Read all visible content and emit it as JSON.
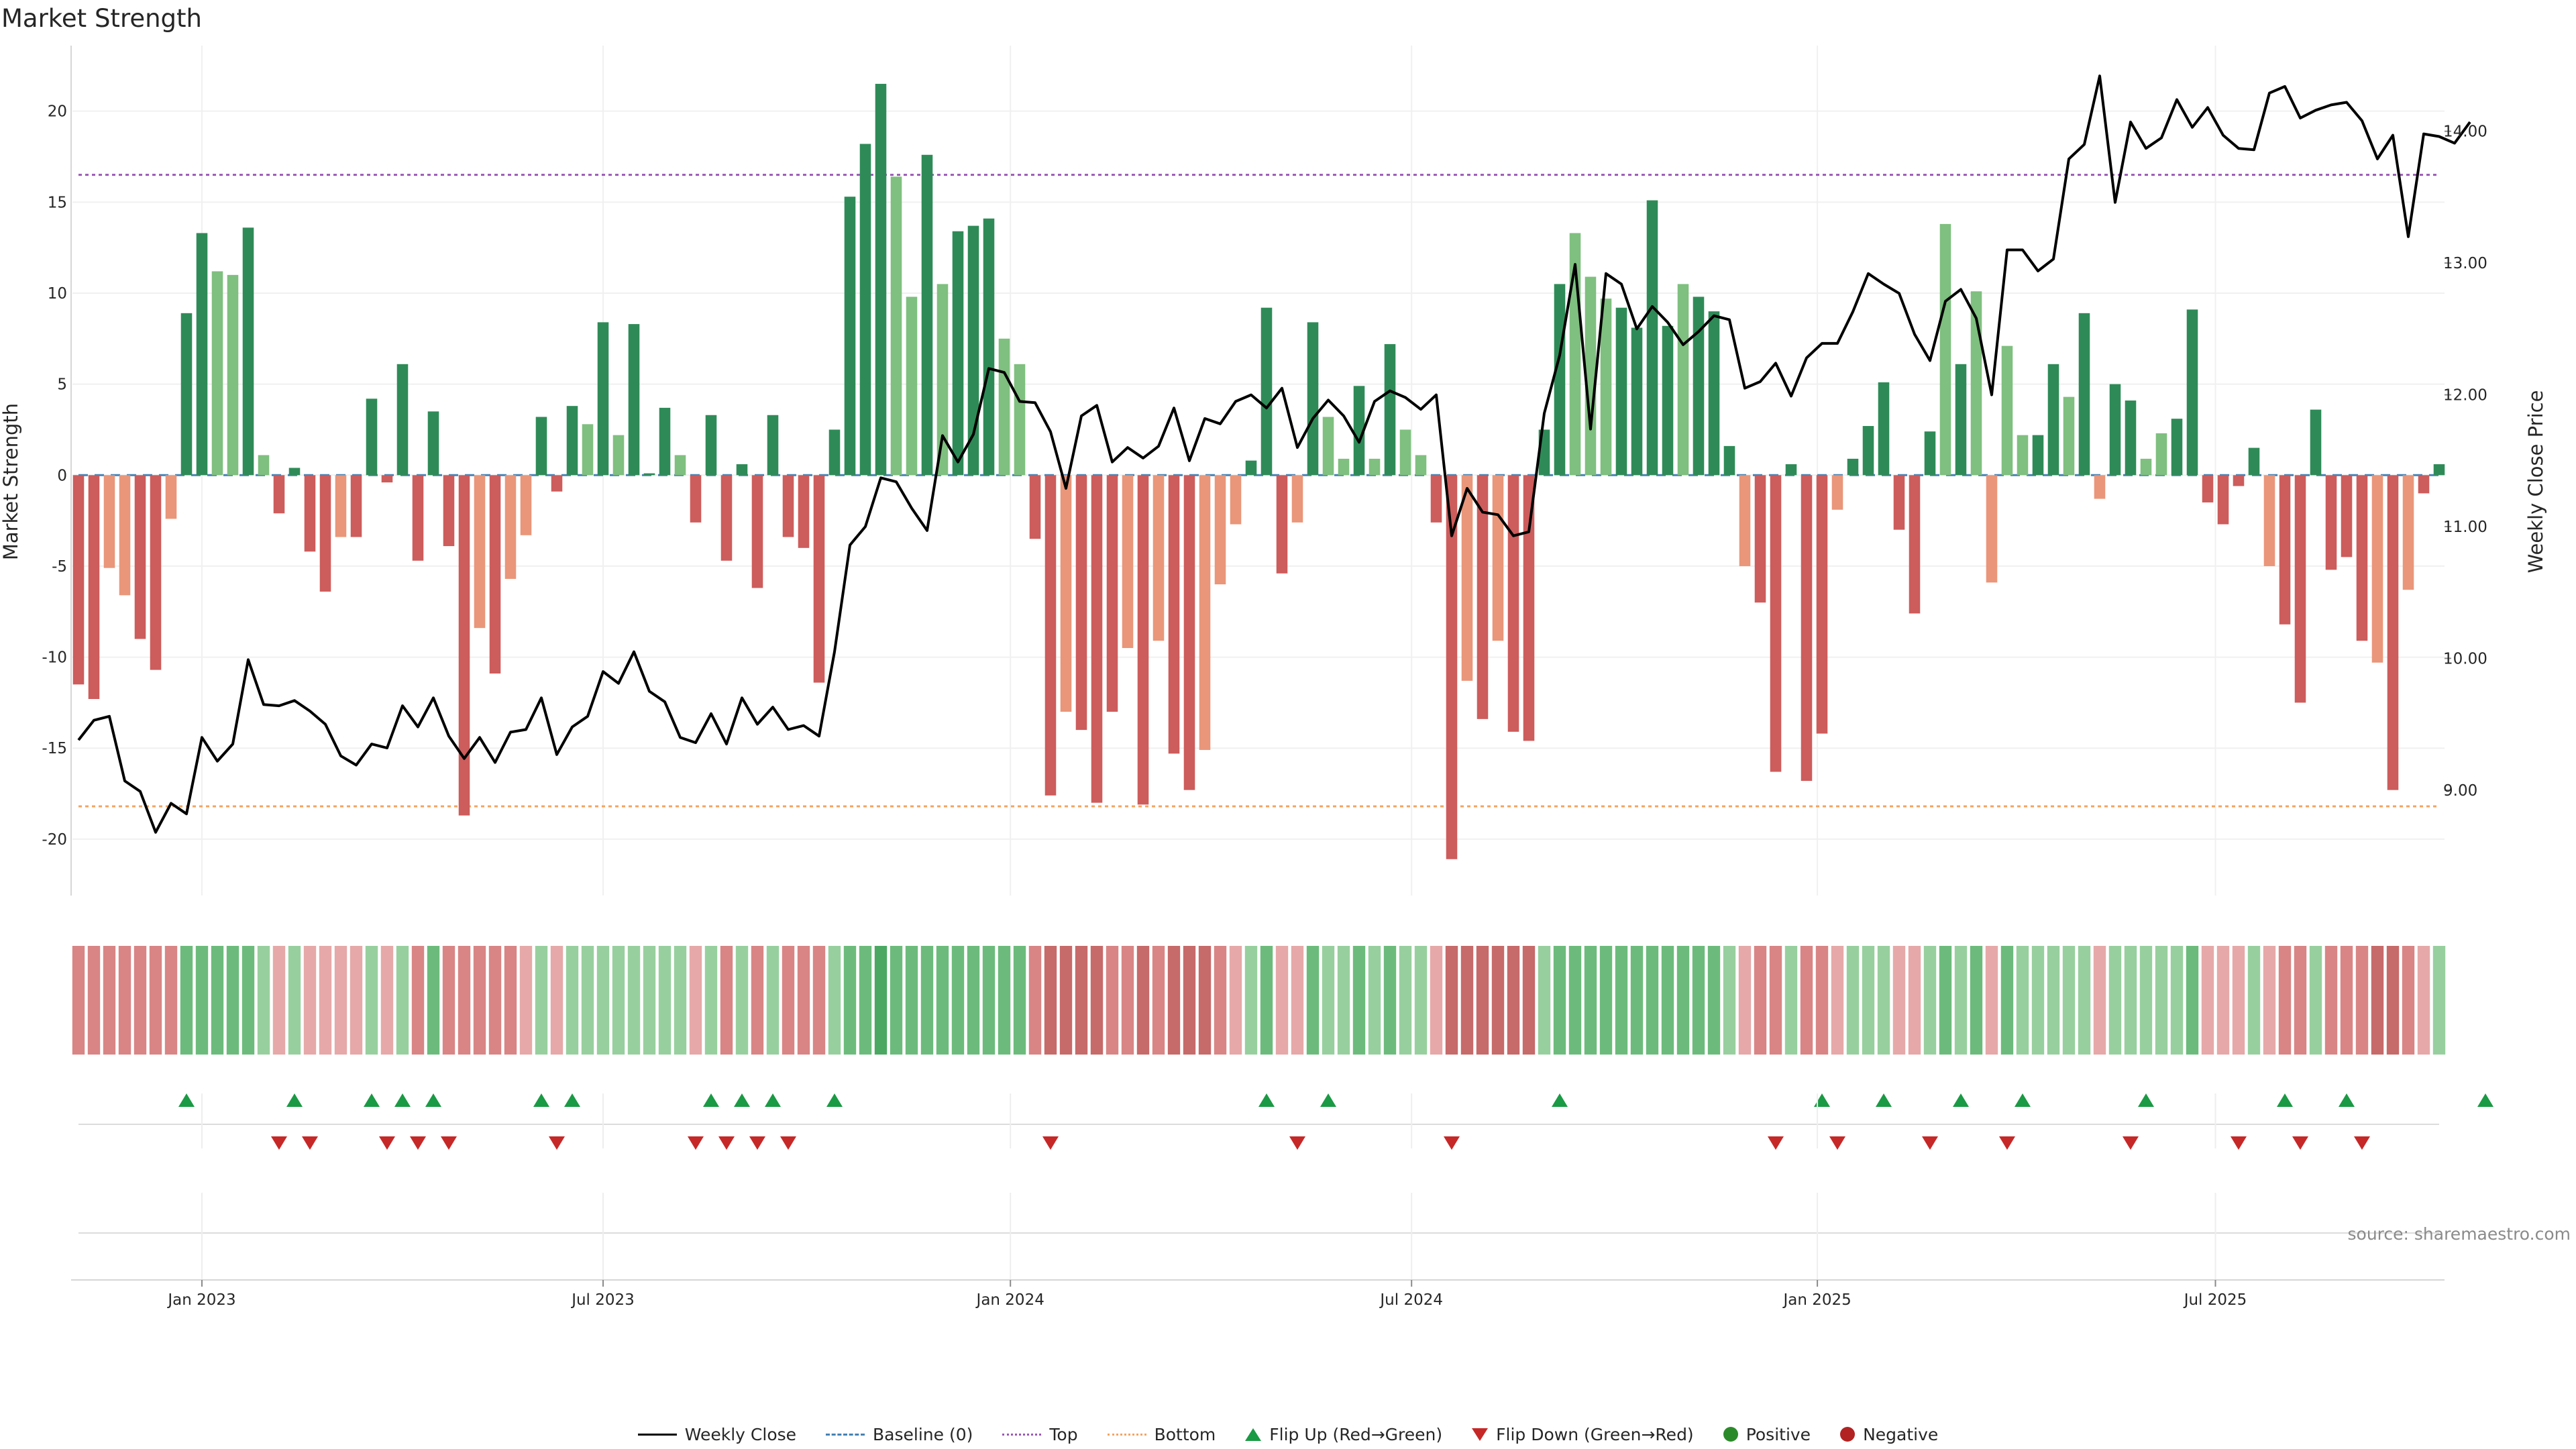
{
  "chart_data": {
    "type": "bar",
    "title": "Market Strength",
    "ylabel_left": "Market Strength",
    "ylabel_right": "Weekly Close Price",
    "source": "source: sharemaestro.com",
    "x_tick_labels": [
      "Jan 2023",
      "Jul 2023",
      "Jan 2024",
      "Jul 2024",
      "Jan 2025",
      "Jul 2025"
    ],
    "x_tick_indices": [
      8,
      34,
      60.4,
      86.4,
      112.7,
      138.5
    ],
    "y_left_ticks": [
      -20,
      -15,
      -10,
      -5,
      0,
      5,
      10,
      15,
      20
    ],
    "y_left_range": [
      -23.1,
      23.6
    ],
    "y_right_ticks": [
      "9.00",
      "10.00",
      "11.00",
      "12.00",
      "13.00",
      "14.00"
    ],
    "y_right_range": [
      8.2,
      14.65
    ],
    "top_line": 16.5,
    "bottom_line": -18.2,
    "strength": [
      -11.5,
      -12.3,
      -5.1,
      -6.6,
      -9,
      -10.7,
      -2.4,
      8.9,
      13.3,
      11.2,
      11,
      13.6,
      1.1,
      -2.1,
      0.4,
      -4.2,
      -6.4,
      -3.4,
      -3.4,
      4.2,
      -0.4,
      6.1,
      -4.7,
      3.5,
      -3.9,
      -18.7,
      -8.4,
      -10.9,
      -5.7,
      -3.3,
      3.2,
      -0.9,
      3.8,
      2.8,
      8.4,
      2.2,
      8.3,
      0.1,
      3.7,
      1.1,
      -2.6,
      3.3,
      -4.7,
      0.6,
      -6.2,
      3.3,
      -3.4,
      -4,
      -11.4,
      2.5,
      15.3,
      18.2,
      21.5,
      16.4,
      9.8,
      17.6,
      10.5,
      13.4,
      13.7,
      14.1,
      7.5,
      6.1,
      -3.5,
      -17.6,
      -13,
      -14,
      -18,
      -13,
      -9.5,
      -18.1,
      -9.1,
      -15.3,
      -17.3,
      -15.1,
      -6,
      -2.7,
      0.8,
      9.2,
      -5.4,
      -2.6,
      8.4,
      3.2,
      0.9,
      4.9,
      0.9,
      7.2,
      2.5,
      1.1,
      -2.6,
      -21.1,
      -11.3,
      -13.4,
      -9.1,
      -14.1,
      -14.6,
      2.5,
      10.5,
      13.3,
      10.9,
      9.7,
      9.2,
      8.1,
      15.1,
      8.2,
      10.5,
      9.8,
      9,
      1.6,
      -5,
      -7,
      -16.3,
      0.6,
      -16.8,
      -14.2,
      -1.9,
      0.9,
      2.7,
      5.1,
      -3,
      -7.6,
      2.4,
      13.8,
      6.1,
      10.1,
      -5.9,
      7.1,
      2.2,
      2.2,
      6.1,
      4.3,
      8.9,
      -1.3,
      5,
      4.1,
      0.9,
      2.3,
      3.1,
      9.1,
      -1.5,
      -2.7,
      -0.6,
      1.5,
      -5,
      -8.2,
      -12.5,
      3.6,
      -5.2,
      -4.5,
      -9.1,
      -10.3,
      -17.3,
      -6.3,
      -1,
      0.6
    ],
    "bar_shade": [
      1,
      1,
      0,
      0,
      1,
      1,
      0,
      1,
      1,
      0,
      0,
      1,
      0,
      1,
      1,
      1,
      1,
      0,
      1,
      1,
      1,
      1,
      1,
      1,
      1,
      1,
      0,
      1,
      0,
      0,
      1,
      1,
      1,
      0,
      1,
      0,
      1,
      1,
      1,
      0,
      1,
      1,
      1,
      1,
      1,
      1,
      1,
      1,
      1,
      1,
      1,
      1,
      1,
      0,
      0,
      1,
      0,
      1,
      1,
      1,
      0,
      0,
      1,
      1,
      0,
      1,
      1,
      1,
      0,
      1,
      0,
      1,
      1,
      0,
      0,
      0,
      1,
      1,
      1,
      0,
      1,
      0,
      0,
      1,
      0,
      1,
      0,
      0,
      1,
      1,
      0,
      1,
      0,
      1,
      1,
      1,
      1,
      0,
      0,
      0,
      1,
      1,
      1,
      1,
      0,
      1,
      1,
      1,
      0,
      1,
      1,
      1,
      1,
      1,
      0,
      1,
      1,
      1,
      1,
      1,
      1,
      0,
      1,
      0,
      0,
      0,
      0,
      1,
      1,
      0,
      1,
      0,
      1,
      1,
      0,
      0,
      1,
      1,
      1,
      1,
      1,
      1,
      0,
      1,
      1,
      1,
      1,
      1,
      1,
      0,
      1,
      0,
      1,
      1,
      0,
      0,
      0
    ],
    "weekly_close": [
      9.38,
      9.53,
      9.56,
      9.07,
      8.99,
      8.68,
      8.9,
      8.82,
      9.4,
      9.22,
      9.35,
      9.99,
      9.65,
      9.64,
      9.68,
      9.6,
      9.5,
      9.26,
      9.19,
      9.35,
      9.32,
      9.64,
      9.48,
      9.7,
      9.41,
      9.24,
      9.4,
      9.21,
      9.44,
      9.46,
      9.7,
      9.27,
      9.48,
      9.56,
      9.9,
      9.81,
      10.05,
      9.75,
      9.67,
      9.4,
      9.36,
      9.58,
      9.35,
      9.7,
      9.5,
      9.63,
      9.46,
      9.49,
      9.41,
      10.05,
      10.86,
      11.0,
      11.37,
      11.34,
      11.14,
      10.97,
      11.69,
      11.49,
      11.7,
      12.2,
      12.17,
      11.95,
      11.94,
      11.72,
      11.29,
      11.84,
      11.92,
      11.49,
      11.6,
      11.52,
      11.61,
      11.9,
      11.5,
      11.82,
      11.78,
      11.95,
      12.0,
      11.9,
      12.05,
      11.6,
      11.82,
      11.96,
      11.84,
      11.64,
      11.95,
      12.03,
      11.98,
      11.89,
      12.0,
      10.93,
      11.29,
      11.11,
      11.09,
      10.93,
      10.96,
      11.86,
      12.3,
      12.99,
      11.74,
      12.92,
      12.84,
      12.5,
      12.67,
      12.55,
      12.38,
      12.48,
      12.6,
      12.57,
      12.05,
      12.1,
      12.24,
      11.99,
      12.28,
      12.39,
      12.39,
      12.63,
      12.92,
      12.84,
      12.77,
      12.46,
      12.26,
      12.71,
      12.8,
      12.58,
      12.0,
      13.1,
      13.1,
      12.94,
      13.03,
      13.79,
      13.9,
      14.42,
      13.46,
      14.07,
      13.87,
      13.95,
      14.24,
      14.03,
      14.18,
      13.97,
      13.87,
      13.86,
      14.29,
      14.34,
      14.1,
      14.16,
      14.2,
      14.22,
      14.08,
      13.79,
      13.97,
      13.2,
      13.98,
      13.96,
      13.91,
      14.07
    ],
    "heat_levels": [
      -2,
      -2,
      -2,
      -2,
      -2,
      -2,
      -2,
      2,
      2,
      2,
      2,
      2,
      1,
      -1,
      1,
      -1,
      -1,
      -1,
      -1,
      1,
      -1,
      1,
      -2,
      2,
      -2,
      -2,
      -2,
      -2,
      -2,
      -1,
      1,
      -1,
      1,
      1,
      1,
      1,
      1,
      1,
      1,
      1,
      -1,
      1,
      -2,
      1,
      -2,
      1,
      -2,
      -2,
      -2,
      1,
      2,
      2,
      3,
      2,
      2,
      2,
      2,
      2,
      2,
      2,
      2,
      2,
      -2,
      -3,
      -3,
      -3,
      -3,
      -2,
      -2,
      -3,
      -2,
      -3,
      -3,
      -3,
      -2,
      -1,
      1,
      2,
      -1,
      -1,
      2,
      1,
      1,
      2,
      1,
      2,
      1,
      1,
      -1,
      -3,
      -3,
      -3,
      -3,
      -3,
      -3,
      1,
      2,
      2,
      2,
      2,
      2,
      2,
      2,
      2,
      2,
      2,
      2,
      1,
      -1,
      -2,
      -2,
      1,
      -2,
      -2,
      -1,
      1,
      1,
      1,
      -1,
      -1,
      1,
      2,
      1,
      2,
      -1,
      2,
      1,
      1,
      1,
      1,
      1,
      -1,
      1,
      1,
      1,
      1,
      1,
      2,
      -1,
      -1,
      -1,
      1,
      -1,
      -2,
      -2,
      1,
      -2,
      -2,
      -2,
      -3,
      -3,
      -2,
      -1,
      1
    ],
    "flip_up_indices": [
      7,
      14,
      19,
      21,
      23,
      30,
      32,
      41,
      43,
      45,
      49,
      77,
      81,
      96,
      113,
      117,
      122,
      126,
      134,
      143,
      147,
      156
    ],
    "flip_down_indices": [
      13,
      15,
      20,
      22,
      24,
      31,
      40,
      42,
      44,
      46,
      63,
      79,
      89,
      110,
      114,
      120,
      125,
      133,
      140,
      144,
      148
    ],
    "colors": {
      "bar_green_dark": "#2e8b57",
      "bar_green_light": "#7fbf7f",
      "bar_red_dark": "#cd5c5c",
      "bar_red_light": "#e9967a",
      "weekly_close": "#000000",
      "baseline": "#4682b4",
      "top": "#9b59b6",
      "bottom": "#f4a460",
      "flip_up": "#1a9a44",
      "flip_down": "#c62828",
      "positive": "#2a8a2a",
      "negative": "#b22222"
    },
    "legend": [
      {
        "label": "Weekly Close",
        "kind": "line-solid",
        "color": "#000000"
      },
      {
        "label": "Baseline (0)",
        "kind": "line-dash",
        "color": "#4682b4"
      },
      {
        "label": "Top",
        "kind": "line-dot",
        "color": "#9b59b6"
      },
      {
        "label": "Bottom",
        "kind": "line-dot",
        "color": "#f4a460"
      },
      {
        "label": "Flip Up (Red→Green)",
        "kind": "tri-up",
        "color": "#1a9a44"
      },
      {
        "label": "Flip Down (Green→Red)",
        "kind": "tri-down",
        "color": "#c62828"
      },
      {
        "label": "Positive",
        "kind": "dot",
        "color": "#2a8a2a"
      },
      {
        "label": "Negative",
        "kind": "dot",
        "color": "#b22222"
      }
    ],
    "legend_placement": "bottom-center"
  }
}
